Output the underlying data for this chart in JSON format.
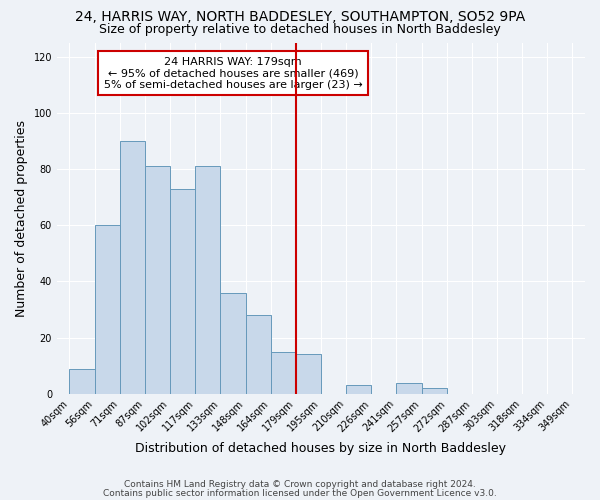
{
  "title": "24, HARRIS WAY, NORTH BADDESLEY, SOUTHAMPTON, SO52 9PA",
  "subtitle": "Size of property relative to detached houses in North Baddesley",
  "xlabel": "Distribution of detached houses by size in North Baddesley",
  "ylabel": "Number of detached properties",
  "bin_labels": [
    "40sqm",
    "56sqm",
    "71sqm",
    "87sqm",
    "102sqm",
    "117sqm",
    "133sqm",
    "148sqm",
    "164sqm",
    "179sqm",
    "195sqm",
    "210sqm",
    "226sqm",
    "241sqm",
    "257sqm",
    "272sqm",
    "287sqm",
    "303sqm",
    "318sqm",
    "334sqm",
    "349sqm"
  ],
  "bar_values": [
    9,
    60,
    90,
    81,
    73,
    81,
    36,
    28,
    15,
    14,
    0,
    3,
    0,
    4,
    2,
    0,
    0,
    0,
    0,
    0
  ],
  "bar_color": "#c8d8ea",
  "bar_edge_color": "#6699bb",
  "vline_color": "#cc0000",
  "annotation_box_text": "24 HARRIS WAY: 179sqm\n← 95% of detached houses are smaller (469)\n5% of semi-detached houses are larger (23) →",
  "annotation_box_color": "#ffffff",
  "annotation_box_edge_color": "#cc0000",
  "ylim": [
    0,
    125
  ],
  "yticks": [
    0,
    20,
    40,
    60,
    80,
    100,
    120
  ],
  "footnote1": "Contains HM Land Registry data © Crown copyright and database right 2024.",
  "footnote2": "Contains public sector information licensed under the Open Government Licence v3.0.",
  "background_color": "#eef2f7",
  "grid_color": "#ffffff",
  "title_fontsize": 10,
  "subtitle_fontsize": 9,
  "axis_label_fontsize": 9,
  "tick_fontsize": 7,
  "annotation_fontsize": 8,
  "footnote_fontsize": 6.5
}
